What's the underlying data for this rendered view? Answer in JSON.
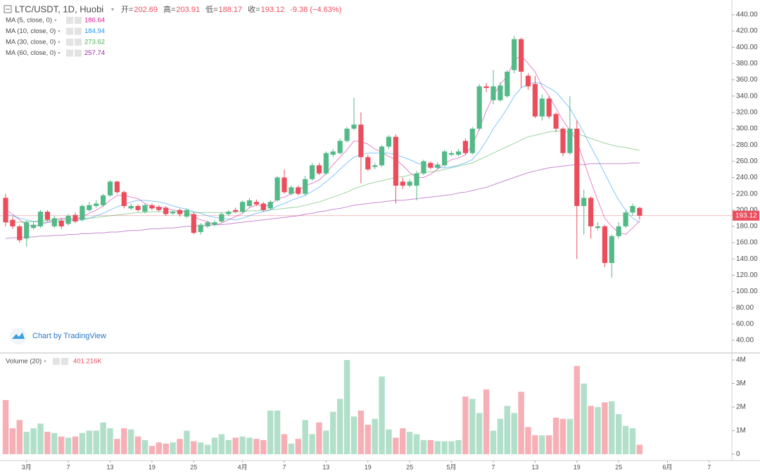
{
  "chart_data": {
    "type": "candlestick",
    "title": "LTC/USDT, 1D, Huobi",
    "ohlc_labels": [
      "开=",
      "高=",
      "低=",
      "收="
    ],
    "change": "-9.38 (−4.63%)",
    "watermark": "Chart by TradingView",
    "up_color": "#53b987",
    "down_color": "#eb4d5c",
    "categories": [
      null,
      null,
      null,
      "3月",
      null,
      null,
      null,
      null,
      null,
      "7",
      null,
      null,
      null,
      null,
      null,
      "13",
      null,
      null,
      null,
      null,
      null,
      "19",
      null,
      null,
      null,
      null,
      null,
      "25",
      null,
      null,
      null,
      null,
      null,
      null,
      "4月",
      null,
      null,
      null,
      null,
      null,
      "7",
      null,
      null,
      null,
      null,
      null,
      "13",
      null,
      null,
      null,
      null,
      null,
      "19",
      null,
      null,
      null,
      null,
      null,
      "25",
      null,
      null,
      null,
      null,
      null,
      "5月",
      null,
      null,
      null,
      null,
      null,
      "7",
      null,
      null,
      null,
      null,
      null,
      "13",
      null,
      null,
      null,
      null,
      null,
      "19",
      null,
      null,
      null,
      null,
      null,
      "25",
      null,
      null,
      null,
      null,
      null,
      null,
      "6月",
      null,
      null,
      null,
      null,
      null,
      "7"
    ],
    "open": [
      215,
      188,
      180,
      165,
      178,
      180,
      198,
      180,
      187,
      183,
      194,
      188,
      200,
      205,
      206,
      218,
      235,
      222,
      202,
      205,
      198,
      206,
      204,
      203,
      196,
      200,
      192,
      195,
      173,
      180,
      182,
      186,
      195,
      200,
      198,
      205,
      210,
      208,
      202,
      212,
      240,
      220,
      228,
      220,
      238,
      255,
      245,
      268,
      270,
      285,
      300,
      305,
      265,
      253,
      255,
      278,
      290,
      235,
      230,
      230,
      245,
      258,
      252,
      255,
      268,
      268,
      285,
      270,
      300,
      352,
      335,
      335,
      340,
      372,
      410,
      365,
      355,
      315,
      337,
      318,
      300,
      270,
      300,
      205,
      215,
      178,
      180,
      135,
      168,
      180,
      197,
      202.69,
      null,
      null,
      null,
      null,
      null,
      null,
      null,
      null,
      null,
      null
    ],
    "high": [
      220,
      192,
      182,
      187,
      186,
      200,
      200,
      193,
      190,
      195,
      197,
      207,
      210,
      212,
      220,
      237,
      236,
      224,
      208,
      207,
      208,
      208,
      206,
      205,
      200,
      202,
      202,
      197,
      184,
      187,
      188,
      197,
      200,
      203,
      212,
      215,
      213,
      210,
      212,
      242,
      250,
      230,
      230,
      242,
      258,
      258,
      272,
      275,
      288,
      302,
      338,
      320,
      268,
      258,
      280,
      292,
      293,
      240,
      238,
      248,
      262,
      260,
      259,
      274,
      273,
      275,
      288,
      302,
      355,
      356,
      372,
      357,
      372,
      414,
      412,
      368,
      365,
      342,
      340,
      320,
      302,
      340,
      310,
      225,
      217,
      185,
      182,
      170,
      185,
      200,
      208,
      203.91,
      null,
      null,
      null,
      null,
      null,
      null,
      null,
      null,
      null,
      null
    ],
    "low": [
      180,
      177,
      160,
      155,
      176,
      178,
      186,
      178,
      177,
      181,
      184,
      186,
      198,
      203,
      204,
      216,
      220,
      202,
      200,
      198,
      196,
      200,
      198,
      193,
      194,
      192,
      190,
      170,
      170,
      178,
      180,
      184,
      193,
      196,
      196,
      203,
      205,
      198,
      200,
      210,
      220,
      218,
      218,
      218,
      236,
      243,
      243,
      265,
      268,
      283,
      298,
      233,
      248,
      250,
      253,
      275,
      208,
      226,
      228,
      212,
      243,
      250,
      250,
      253,
      266,
      266,
      268,
      268,
      298,
      345,
      330,
      333,
      338,
      368,
      350,
      348,
      313,
      310,
      312,
      296,
      266,
      268,
      140,
      170,
      165,
      175,
      130,
      117,
      165,
      178,
      193,
      188.17,
      null,
      null,
      null,
      null,
      null,
      null,
      null,
      null,
      null,
      null
    ],
    "close": [
      185,
      180,
      163,
      185,
      182,
      198,
      188,
      190,
      180,
      193,
      186,
      205,
      206,
      208,
      218,
      235,
      222,
      205,
      205,
      200,
      206,
      202,
      200,
      195,
      198,
      195,
      200,
      172,
      182,
      185,
      185,
      195,
      198,
      198,
      210,
      212,
      207,
      200,
      210,
      240,
      222,
      228,
      220,
      238,
      255,
      245,
      270,
      272,
      285,
      300,
      305,
      265,
      250,
      255,
      278,
      290,
      230,
      230,
      235,
      245,
      260,
      252,
      256,
      272,
      270,
      272,
      270,
      300,
      352,
      350,
      352,
      353,
      370,
      410,
      370,
      352,
      315,
      337,
      315,
      300,
      270,
      300,
      205,
      215,
      180,
      180,
      135,
      168,
      180,
      197,
      205,
      193.12,
      null,
      null,
      null,
      null,
      null,
      null,
      null,
      null,
      null,
      null
    ],
    "volume": [
      2.3,
      1.1,
      1.45,
      0.95,
      1.1,
      1.3,
      0.95,
      0.9,
      0.75,
      0.7,
      0.75,
      0.9,
      1.0,
      1.0,
      1.35,
      1.1,
      0.65,
      1.1,
      1.05,
      0.75,
      0.6,
      0.35,
      0.5,
      0.45,
      0.5,
      0.65,
      1.0,
      0.55,
      0.5,
      0.4,
      0.7,
      0.85,
      0.6,
      0.7,
      0.75,
      0.7,
      0.65,
      0.6,
      1.85,
      1.85,
      0.85,
      0.45,
      0.65,
      1.45,
      0.85,
      1.35,
      1.0,
      1.8,
      2.35,
      4.0,
      1.6,
      1.85,
      1.25,
      1.5,
      3.3,
      1.05,
      0.7,
      1.1,
      0.95,
      0.85,
      0.6,
      0.6,
      0.55,
      0.55,
      0.55,
      0.6,
      2.45,
      2.35,
      1.75,
      2.75,
      1.0,
      1.5,
      2.05,
      1.75,
      2.65,
      1.15,
      0.8,
      0.8,
      0.8,
      1.55,
      1.5,
      1.5,
      3.75,
      3.0,
      2.05,
      2.0,
      2.2,
      2.25,
      1.7,
      1.2,
      1.1,
      0.401216,
      null,
      null,
      null,
      null,
      null,
      null,
      null,
      null,
      null,
      null
    ],
    "volume_name": "Volume (20)",
    "volume_legend_value": "401.216K",
    "ma": [
      {
        "name": "MA (5, close, 0)",
        "color": "#d81b9a",
        "values": [
          200,
          195,
          188,
          182,
          180,
          182,
          185,
          188,
          190,
          190,
          188,
          192,
          196,
          200,
          205,
          212,
          218,
          218,
          216,
          214,
          208,
          204,
          203,
          202,
          200,
          199,
          198,
          192,
          188,
          186,
          182,
          184,
          188,
          192,
          196,
          203,
          206,
          205,
          206,
          214,
          216,
          220,
          224,
          230,
          233,
          237,
          245,
          256,
          265,
          274,
          285,
          284,
          281,
          275,
          271,
          266,
          262,
          255,
          246,
          240,
          240,
          244,
          250,
          257,
          262,
          264,
          268,
          280,
          300,
          322,
          340,
          355,
          364,
          384,
          390,
          380,
          370,
          352,
          340,
          325,
          310,
          298,
          285,
          260,
          235,
          212,
          190,
          180,
          172,
          170,
          178,
          186.64,
          null,
          null,
          null,
          null,
          null,
          null,
          null,
          null,
          null,
          null
        ]
      },
      {
        "name": "MA (10, close, 0)",
        "color": "#2196f3",
        "values": [
          195,
          193,
          190,
          188,
          186,
          185,
          185,
          185,
          186,
          187,
          187,
          188,
          190,
          193,
          196,
          200,
          204,
          207,
          210,
          212,
          212,
          211,
          210,
          208,
          205,
          203,
          201,
          198,
          196,
          193,
          191,
          190,
          189,
          188,
          190,
          193,
          196,
          198,
          200,
          205,
          208,
          212,
          215,
          218,
          223,
          228,
          235,
          242,
          250,
          258,
          265,
          268,
          270,
          270,
          270,
          270,
          268,
          265,
          262,
          258,
          256,
          254,
          252,
          252,
          253,
          255,
          258,
          262,
          272,
          285,
          300,
          312,
          325,
          340,
          350,
          355,
          357,
          355,
          350,
          345,
          335,
          325,
          310,
          295,
          278,
          262,
          245,
          228,
          212,
          200,
          190,
          184.94,
          null,
          null,
          null,
          null,
          null,
          null,
          null,
          null,
          null,
          null
        ]
      },
      {
        "name": "MA (30, close, 0)",
        "color": "#4caf50",
        "values": [
          185,
          185,
          185,
          186,
          186,
          187,
          187,
          188,
          188,
          189,
          189,
          190,
          190,
          191,
          192,
          193,
          194,
          195,
          196,
          197,
          197,
          198,
          198,
          198,
          198,
          198,
          198,
          197,
          197,
          197,
          197,
          197,
          197,
          198,
          198,
          199,
          199,
          200,
          200,
          201,
          202,
          203,
          204,
          206,
          208,
          210,
          213,
          216,
          219,
          222,
          226,
          229,
          232,
          234,
          236,
          238,
          240,
          241,
          243,
          245,
          246,
          247,
          248,
          250,
          252,
          254,
          256,
          258,
          262,
          266,
          270,
          274,
          278,
          282,
          286,
          290,
          292,
          294,
          296,
          297,
          297,
          296,
          294,
          291,
          288,
          285,
          282,
          280,
          278,
          277,
          275,
          273.62,
          null,
          null,
          null,
          null,
          null,
          null,
          null,
          null,
          null,
          null
        ]
      },
      {
        "name": "MA (60, close, 0)",
        "color": "#9c27b0",
        "values": [
          165,
          166,
          166,
          167,
          167,
          168,
          168,
          169,
          169,
          170,
          170,
          171,
          171,
          172,
          172,
          173,
          173,
          174,
          175,
          175,
          176,
          177,
          177,
          178,
          178,
          179,
          180,
          180,
          181,
          181,
          182,
          182,
          183,
          184,
          185,
          186,
          187,
          188,
          189,
          190,
          191,
          192,
          193,
          195,
          196,
          198,
          199,
          201,
          202,
          204,
          206,
          207,
          208,
          209,
          210,
          211,
          212,
          212,
          213,
          214,
          215,
          216,
          217,
          218,
          219,
          221,
          222,
          224,
          226,
          228,
          231,
          234,
          237,
          240,
          243,
          246,
          248,
          250,
          252,
          253,
          254,
          255,
          256,
          256,
          257,
          257,
          257,
          257,
          257,
          257,
          258,
          257.74,
          null,
          null,
          null,
          null,
          null,
          null,
          null,
          null,
          null,
          null
        ]
      }
    ],
    "ylim": [
      24.45,
      458.1
    ],
    "yticks": [
      {
        "value": 40,
        "label": "40.00"
      },
      {
        "value": 60,
        "label": "60.00"
      },
      {
        "value": 80,
        "label": "80.00"
      },
      {
        "value": 100,
        "label": "100.00"
      },
      {
        "value": 120,
        "label": "120.00"
      },
      {
        "value": 140,
        "label": "140.00"
      },
      {
        "value": 160,
        "label": "160.00"
      },
      {
        "value": 180,
        "label": "180.00"
      },
      {
        "value": 200,
        "label": "200.00"
      },
      {
        "value": 220,
        "label": "220.00"
      },
      {
        "value": 240,
        "label": "240.00"
      },
      {
        "value": 260,
        "label": "260.00"
      },
      {
        "value": 280,
        "label": "280.00"
      },
      {
        "value": 300,
        "label": "300.00"
      },
      {
        "value": 320,
        "label": "320.00"
      },
      {
        "value": 340,
        "label": "340.00"
      },
      {
        "value": 360,
        "label": "360.00"
      },
      {
        "value": 380,
        "label": "380.00"
      },
      {
        "value": 400,
        "label": "400.00"
      },
      {
        "value": 420,
        "label": "420.00"
      },
      {
        "value": 440,
        "label": "440.00"
      }
    ],
    "volume_ylim": [
      -0.27,
      4.27
    ],
    "volume_yticks": [
      0,
      {
        "value": 1,
        "label": "1M"
      },
      {
        "value": 2,
        "label": "2M"
      },
      {
        "value": 3,
        "label": "3M"
      },
      {
        "value": 4,
        "label": "4M"
      }
    ]
  }
}
